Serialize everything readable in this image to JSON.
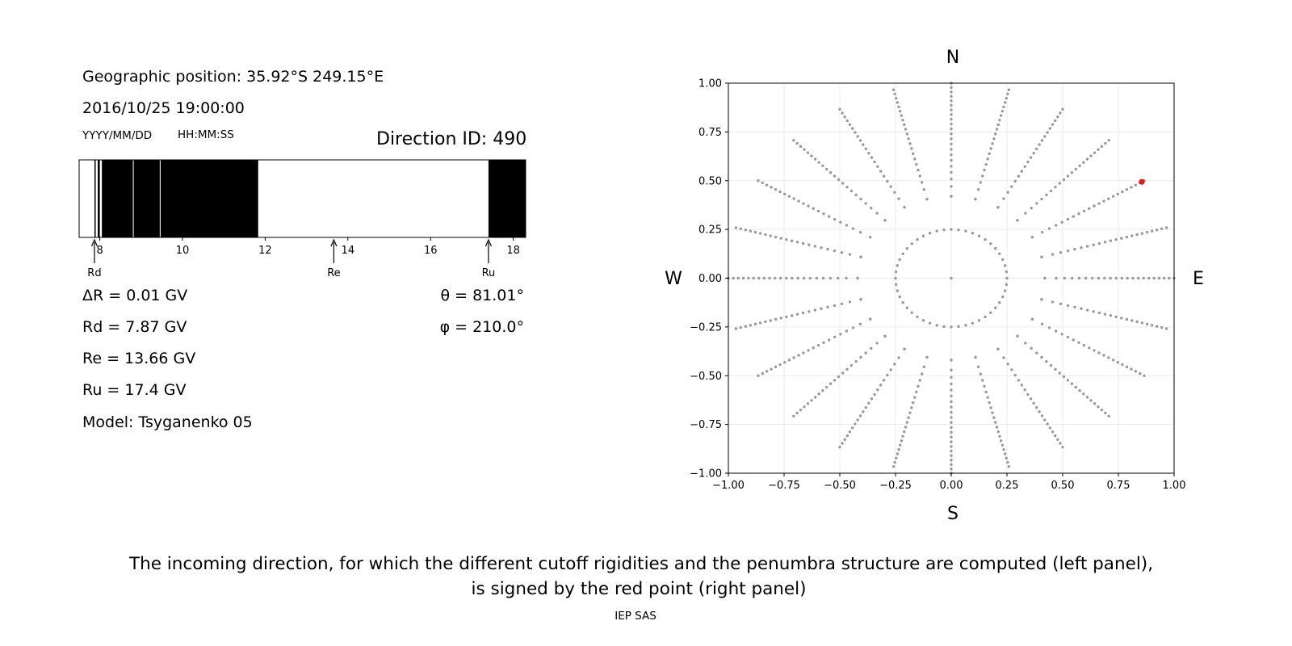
{
  "left_panel": {
    "position_line": "Geographic position: 35.92°S 249.15°E",
    "datetime": "2016/10/25 19:00:00",
    "date_format": "YYYY/MM/DD",
    "time_format": "HH:MM:SS",
    "direction_id": "Direction ID: 490",
    "delta_r": "ΔR = 0.01 GV",
    "rd": "Rd = 7.87 GV",
    "re": "Re = 13.66 GV",
    "ru": "Ru = 17.4 GV",
    "model": "Model: Tsyganenko 05",
    "theta": "θ = 81.01°",
    "phi": "φ = 210.0°"
  },
  "right_panel": {
    "north": "N",
    "south": "S",
    "west": "W",
    "east": "E"
  },
  "caption": {
    "line1": "The incoming direction, for which the different cutoff rigidities and the penumbra structure are computed (left panel),",
    "line2": "is signed by the red point (right panel)",
    "credit": "IEP SAS"
  },
  "chart_data": [
    {
      "type": "bar",
      "x_unit": "GV",
      "xlim": [
        7.5,
        18.3
      ],
      "x_ticks": [
        8,
        10,
        12,
        14,
        16,
        18
      ],
      "tick_labels": [
        "8",
        "10",
        "12",
        "14",
        "16",
        "18"
      ],
      "forbidden_bands": [
        [
          7.87,
          7.9
        ],
        [
          7.95,
          8.0
        ],
        [
          8.05,
          8.8
        ],
        [
          8.82,
          9.45
        ],
        [
          9.47,
          11.83
        ],
        [
          17.4,
          18.3
        ]
      ],
      "markers": [
        {
          "label": "Rd",
          "value": 7.87
        },
        {
          "label": "Re",
          "value": 13.66
        },
        {
          "label": "Ru",
          "value": 17.4
        }
      ],
      "colors": {
        "forbidden": "#000000",
        "allowed": "#ffffff"
      }
    },
    {
      "type": "scatter",
      "xlim": [
        -1.0,
        1.0
      ],
      "ylim": [
        -1.0,
        1.0
      ],
      "x_ticks": [
        -1.0,
        -0.75,
        -0.5,
        -0.25,
        0.0,
        0.25,
        0.5,
        0.75,
        1.0
      ],
      "y_ticks": [
        -1.0,
        -0.75,
        -0.5,
        -0.25,
        0.0,
        0.25,
        0.5,
        0.75,
        1.0
      ],
      "x_tick_labels": [
        "−1.00",
        "−0.75",
        "−0.50",
        "−0.25",
        "0.00",
        "0.25",
        "0.50",
        "0.75",
        "1.00"
      ],
      "y_tick_labels": [
        "−1.00",
        "−0.75",
        "−0.50",
        "−0.25",
        "0.00",
        "0.25",
        "0.50",
        "0.75",
        "1.00"
      ],
      "grid": true,
      "grid_pattern": {
        "azimuth_step_deg": 15,
        "ring_radii": [
          0.25,
          0.42
        ],
        "spoke_start_radius": 0.42,
        "spoke_end_radius": 1.0,
        "spoke_point_count": 22,
        "center_point": [
          0.0,
          0.0
        ]
      },
      "highlight_point": {
        "x": 0.855,
        "y": 0.494
      },
      "colors": {
        "grid_points": "#999999",
        "highlight": "#e11b1b"
      }
    }
  ]
}
